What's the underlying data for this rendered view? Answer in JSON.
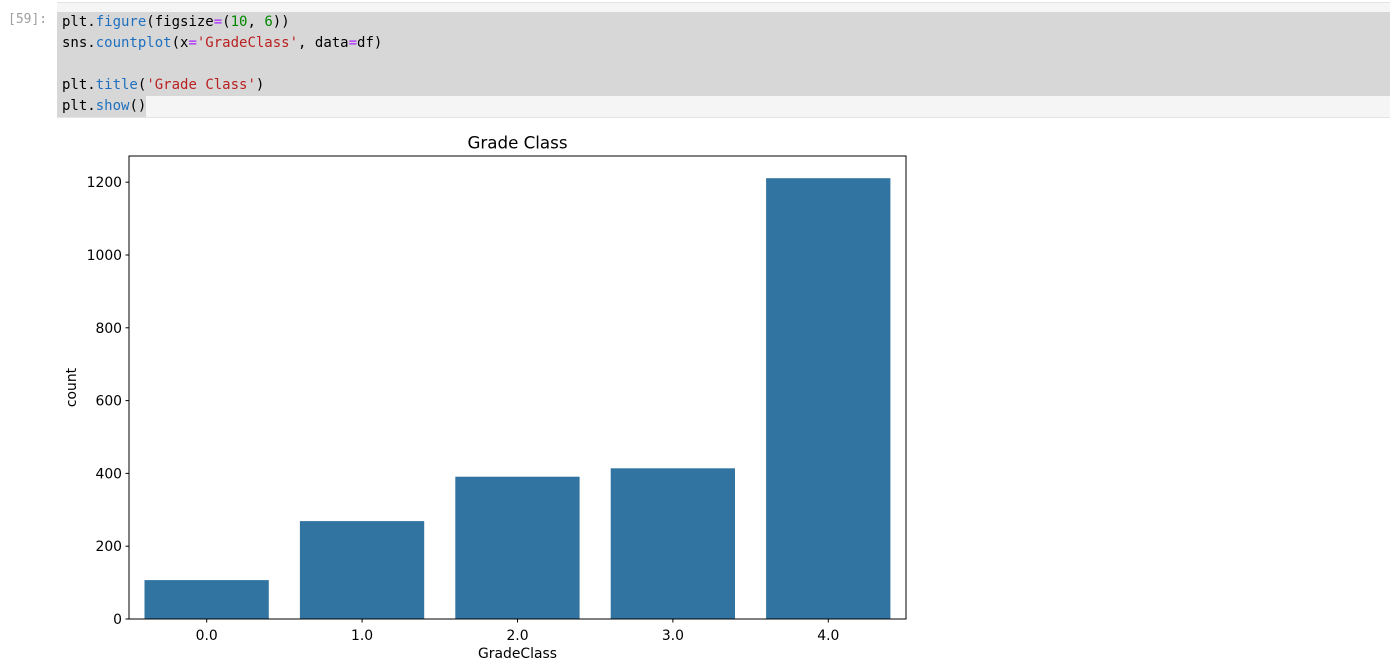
{
  "notebook": {
    "prompt": "[59]:",
    "editor_bg": "#f5f5f5",
    "selection_color": "#d7d7d7",
    "syntax_colors": {
      "plain": "#000000",
      "function": "#1e70bf",
      "operator": "#aa22ff",
      "number": "#008800",
      "string": "#ba2121"
    },
    "code_lines": [
      {
        "selection": "full",
        "tokens": [
          {
            "y": "p",
            "t": "plt."
          },
          {
            "y": "f",
            "t": "figure"
          },
          {
            "y": "p",
            "t": "(figsize"
          },
          {
            "y": "o",
            "t": "="
          },
          {
            "y": "p",
            "t": "("
          },
          {
            "y": "n",
            "t": "10"
          },
          {
            "y": "p",
            "t": ", "
          },
          {
            "y": "n",
            "t": "6"
          },
          {
            "y": "p",
            "t": "))"
          }
        ]
      },
      {
        "selection": "full",
        "tokens": [
          {
            "y": "p",
            "t": "sns."
          },
          {
            "y": "f",
            "t": "countplot"
          },
          {
            "y": "p",
            "t": "(x"
          },
          {
            "y": "o",
            "t": "="
          },
          {
            "y": "s",
            "t": "'GradeClass'"
          },
          {
            "y": "p",
            "t": ", data"
          },
          {
            "y": "o",
            "t": "="
          },
          {
            "y": "p",
            "t": "df)"
          }
        ]
      },
      {
        "selection": "full",
        "tokens": []
      },
      {
        "selection": "full",
        "tokens": [
          {
            "y": "p",
            "t": "plt."
          },
          {
            "y": "f",
            "t": "title"
          },
          {
            "y": "p",
            "t": "("
          },
          {
            "y": "s",
            "t": "'Grade Class'"
          },
          {
            "y": "p",
            "t": ")"
          }
        ]
      },
      {
        "selection": "text",
        "tokens": [
          {
            "y": "p",
            "t": "plt."
          },
          {
            "y": "f",
            "t": "show"
          },
          {
            "y": "p",
            "t": "()"
          }
        ]
      }
    ]
  },
  "chart_data": {
    "type": "bar",
    "title": "Grade Class",
    "xlabel": "GradeClass",
    "ylabel": "count",
    "categories": [
      "0.0",
      "1.0",
      "2.0",
      "3.0",
      "4.0"
    ],
    "values": [
      107,
      269,
      391,
      414,
      1211
    ],
    "yticks": [
      0,
      200,
      400,
      600,
      800,
      1000,
      1200
    ],
    "ylim": [
      0,
      1272
    ],
    "bar_color": "#3274a1",
    "axis_color": "#000000",
    "grid": false,
    "legend": "none",
    "frame": true
  }
}
